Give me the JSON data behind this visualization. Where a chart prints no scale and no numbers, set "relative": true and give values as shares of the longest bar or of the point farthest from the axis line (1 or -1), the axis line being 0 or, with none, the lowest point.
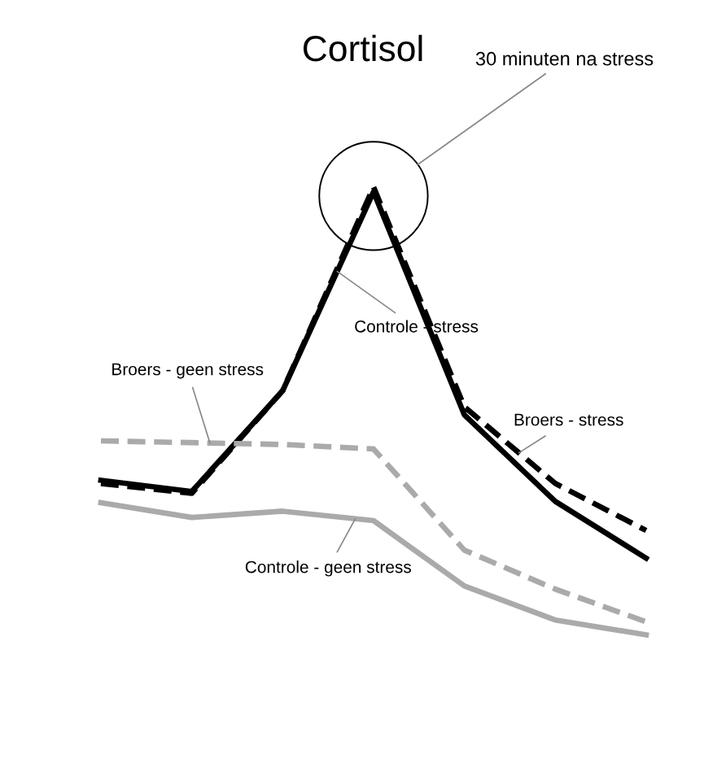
{
  "chart_data": {
    "type": "line",
    "title": "Cortisol",
    "relative": true,
    "categories": [
      null,
      null,
      null,
      null,
      null,
      null,
      null
    ],
    "series": [
      {
        "name": "Controle - stress",
        "color": "#000000",
        "line_style": "solid",
        "values": [
          0.345,
          0.32,
          0.545,
          0.989,
          0.491,
          0.298,
          0.171
        ]
      },
      {
        "name": "Broers - stress",
        "color": "#000000",
        "line_style": "dashed",
        "values": [
          0.338,
          0.316,
          0.545,
          1.0,
          0.509,
          0.338,
          0.233
        ]
      },
      {
        "name": "Broers - geen stress",
        "color": "#aaaaaa",
        "line_style": "dashed",
        "values": [
          0.433,
          0.429,
          0.425,
          0.415,
          0.189,
          0.102,
          0.029
        ]
      },
      {
        "name": "Controle - geen stress",
        "color": "#aaaaaa",
        "line_style": "solid",
        "values": [
          0.295,
          0.262,
          0.276,
          0.255,
          0.109,
          0.033,
          0.0
        ]
      }
    ],
    "annotations": [
      "30 minuten na stress"
    ]
  }
}
